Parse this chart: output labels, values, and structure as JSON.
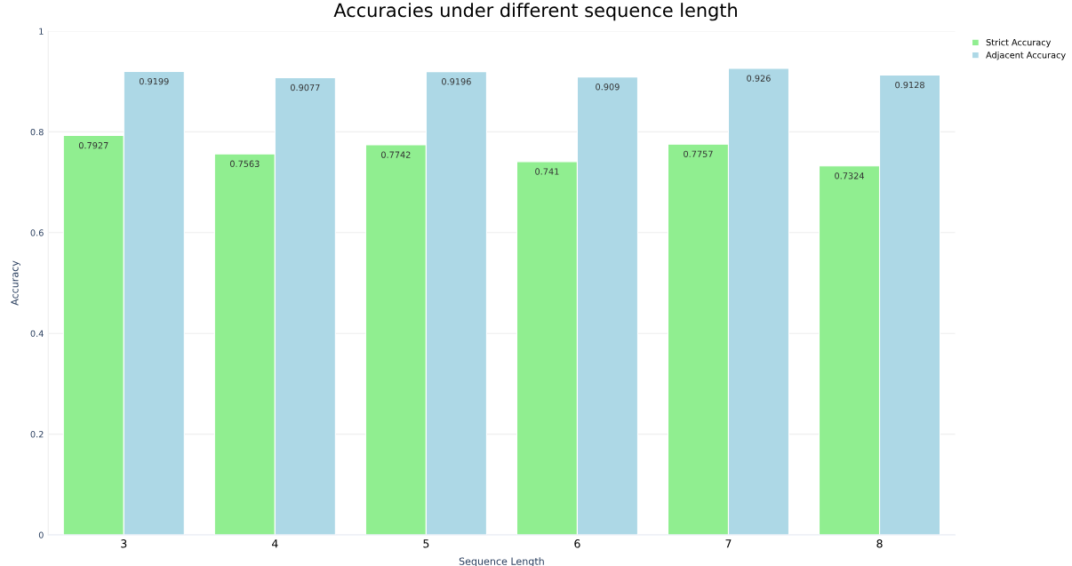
{
  "chart_data": {
    "type": "bar",
    "title": "Accuracies under different sequence length",
    "xlabel": "Sequence Length",
    "ylabel": "Accuracy",
    "categories": [
      "3",
      "4",
      "5",
      "6",
      "7",
      "8"
    ],
    "series": [
      {
        "name": "Strict Accuracy",
        "color": "#90ee90",
        "values": [
          0.7927,
          0.7563,
          0.7742,
          0.741,
          0.7757,
          0.7324
        ]
      },
      {
        "name": "Adjacent Accuracy",
        "color": "#add8e6",
        "values": [
          0.9199,
          0.9077,
          0.9196,
          0.909,
          0.926,
          0.9128
        ]
      }
    ],
    "ylim": [
      0,
      1
    ],
    "yticks": [
      0,
      0.2,
      0.4,
      0.6,
      0.8,
      1
    ],
    "grid": "y",
    "legend": "top right",
    "data_labels": true
  }
}
